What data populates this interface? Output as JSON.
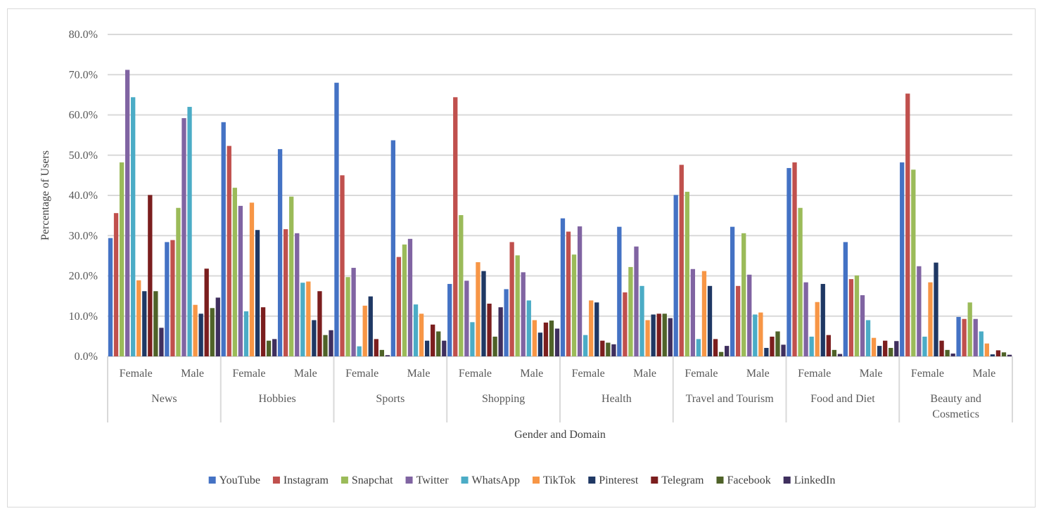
{
  "chart_data": {
    "type": "bar",
    "title": "",
    "xlabel": "Gender and Domain",
    "ylabel": "Percentage of Users",
    "ylim": [
      0,
      80
    ],
    "yticks": [
      "0.0%",
      "10.0%",
      "20.0%",
      "30.0%",
      "40.0%",
      "50.0%",
      "60.0%",
      "70.0%",
      "80.0%"
    ],
    "grid": true,
    "legend_position": "bottom",
    "domains": [
      "News",
      "Hobbies",
      "Sports",
      "Shopping",
      "Health",
      "Travel and Tourism",
      "Food and Diet",
      "Beauty and Cosmetics"
    ],
    "genders": [
      "Female",
      "Male"
    ],
    "series": [
      {
        "name": "YouTube",
        "color": "#4472C4",
        "values": [
          29.4,
          28.4,
          58.2,
          51.5,
          68.0,
          53.7,
          18.0,
          16.7,
          34.3,
          32.2,
          40.1,
          32.2,
          46.8,
          28.4,
          48.2,
          9.8
        ]
      },
      {
        "name": "Instagram",
        "color": "#C0504D",
        "values": [
          35.6,
          28.9,
          52.3,
          31.6,
          45.0,
          24.7,
          64.4,
          28.4,
          31.0,
          15.9,
          47.6,
          17.5,
          48.2,
          19.2,
          65.3,
          9.3
        ]
      },
      {
        "name": "Snapchat",
        "color": "#9BBB59",
        "values": [
          48.2,
          36.9,
          41.9,
          39.7,
          19.7,
          27.8,
          35.1,
          25.1,
          25.3,
          22.2,
          40.9,
          30.6,
          36.9,
          20.1,
          46.4,
          13.4
        ]
      },
      {
        "name": "Twitter",
        "color": "#8064A2",
        "values": [
          71.2,
          59.2,
          37.4,
          30.6,
          22.0,
          29.2,
          18.8,
          20.9,
          32.3,
          27.3,
          21.7,
          20.3,
          18.4,
          15.2,
          22.4,
          9.3
        ]
      },
      {
        "name": "WhatsApp",
        "color": "#4BACC6",
        "values": [
          64.4,
          62.0,
          11.2,
          18.3,
          2.5,
          12.9,
          8.5,
          13.9,
          5.3,
          17.5,
          4.3,
          10.4,
          4.9,
          9.0,
          4.9,
          6.2
        ]
      },
      {
        "name": "TikTok",
        "color": "#F79646",
        "values": [
          18.9,
          12.8,
          38.2,
          18.6,
          12.6,
          10.6,
          23.4,
          9.0,
          13.9,
          9.0,
          21.2,
          10.9,
          13.5,
          4.6,
          18.4,
          3.2
        ]
      },
      {
        "name": "Pinterest",
        "color": "#1F3864",
        "values": [
          16.2,
          10.6,
          31.4,
          9.0,
          14.9,
          3.9,
          21.2,
          5.9,
          13.4,
          10.4,
          17.5,
          2.1,
          18.0,
          2.6,
          23.3,
          0.5
        ]
      },
      {
        "name": "Telegram",
        "color": "#7B1E1E",
        "values": [
          40.1,
          21.8,
          12.2,
          16.2,
          4.3,
          7.9,
          13.1,
          8.4,
          3.9,
          10.6,
          4.3,
          4.9,
          5.3,
          3.9,
          3.9,
          1.5
        ]
      },
      {
        "name": "Facebook",
        "color": "#4F6228",
        "values": [
          16.2,
          12.0,
          3.9,
          5.3,
          1.6,
          6.2,
          4.9,
          8.9,
          3.4,
          10.6,
          1.1,
          6.2,
          1.6,
          2.1,
          1.6,
          1.0
        ]
      },
      {
        "name": "LinkedIn",
        "color": "#3F2F5E",
        "values": [
          7.1,
          14.6,
          4.3,
          6.5,
          0.3,
          3.9,
          12.2,
          6.9,
          3.0,
          9.5,
          2.6,
          2.9,
          0.6,
          3.8,
          0.7,
          0.4
        ]
      }
    ]
  }
}
